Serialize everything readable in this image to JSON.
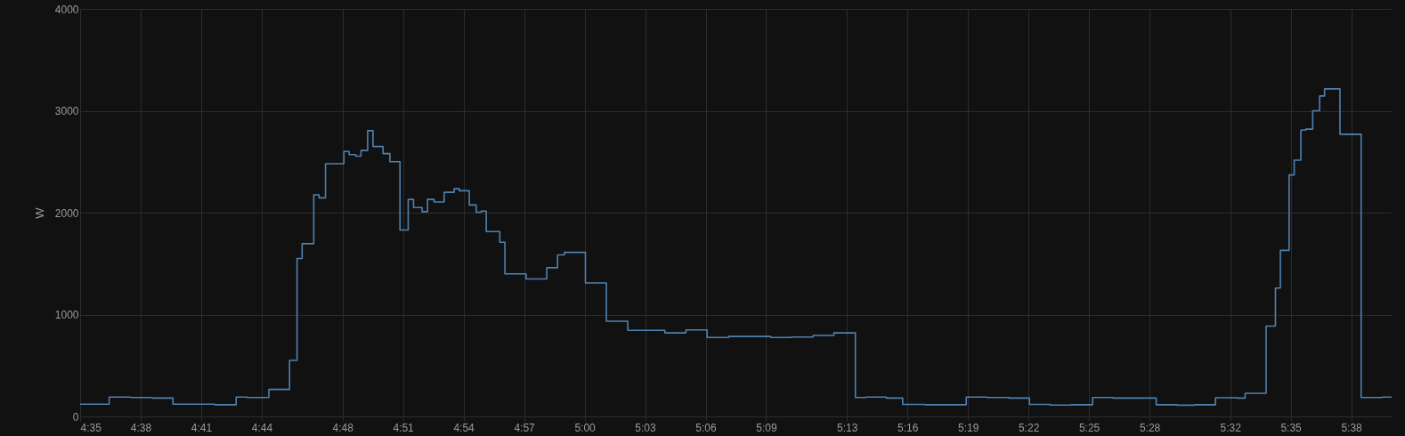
{
  "chart_data": {
    "type": "step",
    "ylabel": "W",
    "xlim": [
      4.5833,
      5.6667
    ],
    "ylim": [
      0,
      4000
    ],
    "yticks": [
      0,
      1000,
      2000,
      3000,
      4000
    ],
    "xticks": [
      {
        "value": 4.5833,
        "label": "4:35"
      },
      {
        "value": 4.6333,
        "label": "4:38"
      },
      {
        "value": 4.6833,
        "label": "4:41"
      },
      {
        "value": 4.7333,
        "label": "4:44"
      },
      {
        "value": 4.8,
        "label": "4:48"
      },
      {
        "value": 4.85,
        "label": "4:51"
      },
      {
        "value": 4.9,
        "label": "4:54"
      },
      {
        "value": 4.95,
        "label": "4:57"
      },
      {
        "value": 5,
        "label": "5:00"
      },
      {
        "value": 5.05,
        "label": "5:03"
      },
      {
        "value": 5.1,
        "label": "5:06"
      },
      {
        "value": 5.15,
        "label": "5:09"
      },
      {
        "value": 5.2167,
        "label": "5:13"
      },
      {
        "value": 5.2667,
        "label": "5:16"
      },
      {
        "value": 5.3167,
        "label": "5:19"
      },
      {
        "value": 5.3667,
        "label": "5:22"
      },
      {
        "value": 5.4167,
        "label": "5:25"
      },
      {
        "value": 5.4667,
        "label": "5:28"
      },
      {
        "value": 5.5333,
        "label": "5:32"
      },
      {
        "value": 5.5833,
        "label": "5:35"
      },
      {
        "value": 5.6333,
        "label": "5:38"
      }
    ],
    "grid": true,
    "line_style": "solid",
    "marker": "none",
    "series": [
      {
        "color": "#4f81b0",
        "x": [
          4.5833,
          4.6073,
          4.6252,
          4.6429,
          4.66,
          4.6943,
          4.7122,
          4.7213,
          4.7392,
          4.7563,
          4.7625,
          4.7667,
          4.7763,
          4.7807,
          4.786,
          4.8012,
          4.8055,
          4.811,
          4.8153,
          4.8208,
          4.8252,
          4.8335,
          4.8392,
          4.8475,
          4.8543,
          4.8587,
          4.8658,
          4.8703,
          4.8757,
          4.884,
          4.8923,
          4.8965,
          4.9048,
          4.9105,
          4.9147,
          4.9188,
          4.93,
          4.9342,
          4.9517,
          4.9688,
          4.9777,
          4.9833,
          5.0007,
          5.018,
          5.0357,
          5.0663,
          5.0837,
          5.1012,
          5.119,
          5.1538,
          5.1712,
          5.1888,
          5.206,
          5.2237,
          5.2322,
          5.2493,
          5.2628,
          5.2812,
          5.3153,
          5.3325,
          5.3505,
          5.3675,
          5.3848,
          5.402,
          5.4197,
          5.4368,
          5.4722,
          5.4895,
          5.504,
          5.5212,
          5.5393,
          5.5457,
          5.563,
          5.5707,
          5.5748,
          5.582,
          5.5862,
          5.5917,
          5.5957,
          5.6015,
          5.6072,
          5.6113,
          5.624,
          5.6415,
          5.6588,
          5.6667
        ],
        "values": [
          120,
          190,
          185,
          180,
          120,
          115,
          190,
          185,
          265,
          550,
          1550,
          1695,
          2175,
          2145,
          2480,
          2600,
          2570,
          2555,
          2610,
          2805,
          2650,
          2580,
          2500,
          1830,
          2130,
          2050,
          2010,
          2130,
          2105,
          2200,
          2235,
          2215,
          2075,
          2005,
          2015,
          1815,
          1710,
          1400,
          1350,
          1460,
          1585,
          1610,
          1310,
          935,
          845,
          820,
          850,
          775,
          785,
          775,
          780,
          795,
          820,
          185,
          190,
          180,
          118,
          115,
          190,
          185,
          180,
          118,
          112,
          115,
          185,
          180,
          115,
          110,
          115,
          183,
          180,
          227,
          886,
          1260,
          1630,
          2370,
          2515,
          2810,
          2820,
          3000,
          3145,
          3215,
          2770,
          185,
          190,
          190
        ]
      }
    ]
  }
}
